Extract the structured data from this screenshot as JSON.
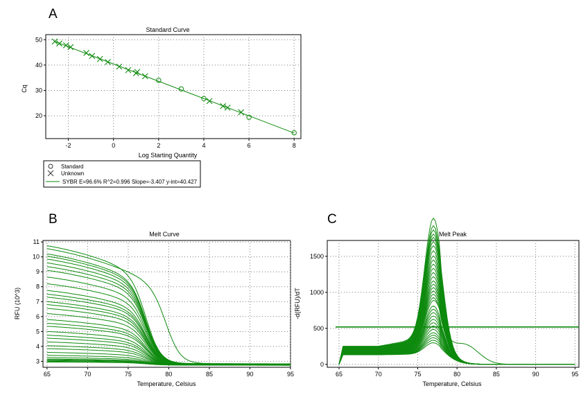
{
  "panels": {
    "a": "A",
    "b": "B",
    "c": "C"
  },
  "chart_data": [
    {
      "type": "scatter",
      "title": "Standard Curve",
      "xlabel": "Log Starting Quantity",
      "ylabel": "Cq",
      "xlim": [
        -3,
        8.3
      ],
      "ylim": [
        11,
        52
      ],
      "xticks": [
        -2,
        0,
        2,
        4,
        6,
        8
      ],
      "yticks": [
        20,
        30,
        40,
        50
      ],
      "grid": true,
      "legend_position": "below",
      "legend": [
        "Standard",
        "Unknown",
        "SYBR   E=96.6% R^2=0.996 Slope=-3.407 y-int=40.427"
      ],
      "fit": {
        "slope": -3.407,
        "intercept": 40.427,
        "x_range": [
          -2.6,
          8
        ]
      },
      "series": [
        {
          "name": "Standard",
          "marker": "circle",
          "points": [
            [
              2,
              34.0
            ],
            [
              3,
              30.6
            ],
            [
              4,
              26.8
            ],
            [
              6,
              19.4
            ],
            [
              8,
              13.3
            ]
          ]
        },
        {
          "name": "Unknown",
          "marker": "x",
          "points": [
            [
              -2.6,
              49.3
            ],
            [
              -2.4,
              48.5
            ],
            [
              -2.1,
              47.8
            ],
            [
              -1.9,
              47.1
            ],
            [
              -1.2,
              44.8
            ],
            [
              -0.95,
              43.6
            ],
            [
              -0.6,
              42.4
            ],
            [
              -0.25,
              41.2
            ],
            [
              0.25,
              39.4
            ],
            [
              0.65,
              38.0
            ],
            [
              1.0,
              36.8
            ],
            [
              1.05,
              37.3
            ],
            [
              1.4,
              35.6
            ],
            [
              4.25,
              25.8
            ],
            [
              4.85,
              23.8
            ],
            [
              5.05,
              23.2
            ],
            [
              5.65,
              21.4
            ]
          ]
        }
      ]
    },
    {
      "type": "line",
      "title": "Melt Curve",
      "xlabel": "Temperature, Celsius",
      "ylabel": "RFU (10^3)",
      "xlim": [
        64.5,
        95
      ],
      "ylim": [
        2.6,
        11.1
      ],
      "xticks": [
        65,
        70,
        75,
        80,
        85,
        90,
        95
      ],
      "yticks": [
        3,
        4,
        5,
        6,
        7,
        8,
        9,
        10,
        11
      ],
      "grid": true,
      "series_count": 34,
      "start_values": [
        10.75,
        10.55,
        10.2,
        10.05,
        9.85,
        9.6,
        9.35,
        9.1,
        8.65,
        8.2,
        7.75,
        7.5,
        7.3,
        7.0,
        6.8,
        6.55,
        6.2,
        5.8,
        5.55,
        5.35,
        5.0,
        4.75,
        4.55,
        4.3,
        4.05,
        3.85,
        3.6,
        3.4,
        3.25,
        3.15,
        3.1,
        3.05,
        3.0,
        2.95
      ],
      "baseline": 2.85
    },
    {
      "type": "line",
      "title": "Melt Peak",
      "xlabel": "Temperature, Celsius",
      "ylabel": "-d(RFU)/dT",
      "xlim": [
        63.5,
        95.5
      ],
      "ylim": [
        -40,
        1720
      ],
      "xticks": [
        65,
        70,
        75,
        80,
        85,
        90,
        95
      ],
      "yticks": [
        0,
        500,
        1000,
        1500
      ],
      "grid": true,
      "threshold": 520,
      "peak_temperature": 77,
      "peak_heights": [
        1650,
        1560,
        1510,
        1460,
        1420,
        1370,
        1320,
        1260,
        1200,
        1150,
        1100,
        1050,
        1000,
        950,
        900,
        860,
        820,
        780,
        740,
        700,
        650,
        600,
        560,
        520,
        480,
        440,
        400,
        360,
        320,
        280,
        250,
        220,
        190,
        160
      ]
    }
  ]
}
